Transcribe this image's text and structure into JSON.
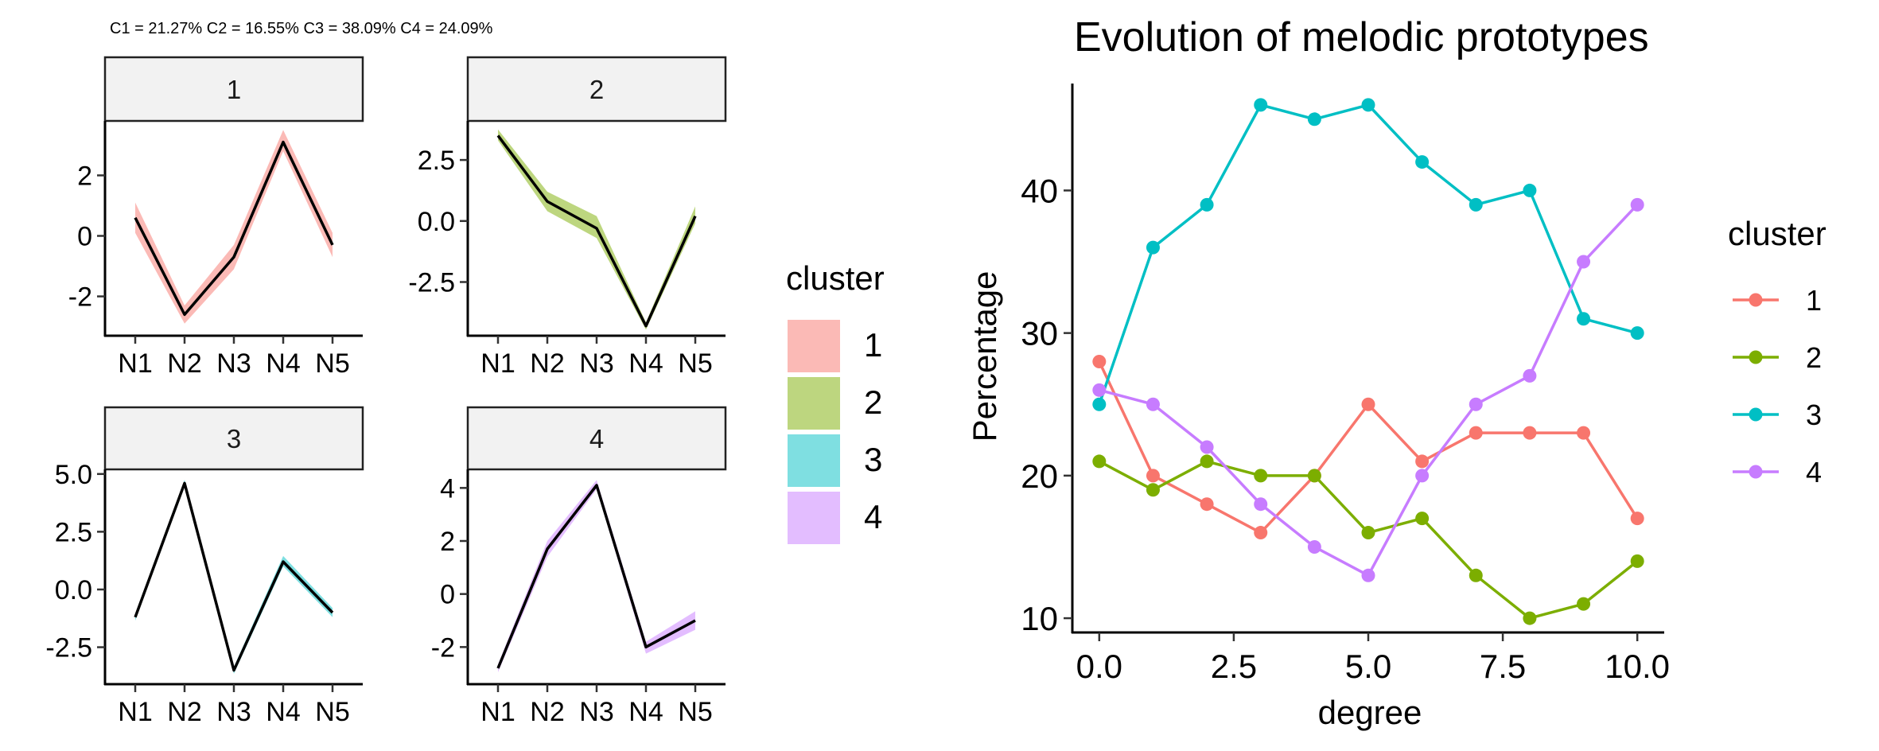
{
  "subtitle": "C1 = 21.27% C2 = 16.55% C3 = 38.09% C4 = 24.09%",
  "chart_data": [
    {
      "type": "line",
      "panels": [
        {
          "label": "1",
          "color": "#F8766D",
          "categories": [
            "N1",
            "N2",
            "N3",
            "N4",
            "N5"
          ],
          "values": [
            0.6,
            -2.6,
            -0.7,
            3.1,
            -0.3
          ],
          "band_lower": [
            0.1,
            -2.9,
            -1.1,
            2.8,
            -0.7
          ],
          "band_upper": [
            1.1,
            -2.3,
            -0.3,
            3.5,
            0.1
          ],
          "yticks": [
            -2,
            0,
            2
          ],
          "ylim": [
            -3.3,
            3.8
          ]
        },
        {
          "label": "2",
          "color": "#7CAE00",
          "categories": [
            "N1",
            "N2",
            "N3",
            "N4",
            "N5"
          ],
          "values": [
            3.5,
            0.8,
            -0.3,
            -4.3,
            0.2
          ],
          "band_lower": [
            3.3,
            0.4,
            -0.7,
            -4.45,
            -0.1
          ],
          "band_upper": [
            3.75,
            1.2,
            0.2,
            -4.15,
            0.6
          ],
          "yticks": [
            -2.5,
            0.0,
            2.5
          ],
          "yticklabels": [
            "-2.5",
            "0.0",
            "2.5"
          ],
          "ylim": [
            -4.7,
            4.1
          ]
        },
        {
          "label": "3",
          "color": "#00BFC4",
          "categories": [
            "N1",
            "N2",
            "N3",
            "N4",
            "N5"
          ],
          "values": [
            -1.2,
            4.6,
            -3.5,
            1.2,
            -1.0
          ],
          "band_lower": [
            -1.35,
            4.45,
            -3.65,
            1.0,
            -1.2
          ],
          "band_upper": [
            -1.05,
            4.75,
            -3.35,
            1.45,
            -0.8
          ],
          "yticks": [
            -2.5,
            0.0,
            2.5,
            5.0
          ],
          "yticklabels": [
            "-2.5",
            "0.0",
            "2.5",
            "5.0"
          ],
          "ylim": [
            -4.1,
            5.2
          ]
        },
        {
          "label": "4",
          "color": "#C77CFF",
          "categories": [
            "N1",
            "N2",
            "N3",
            "N4",
            "N5"
          ],
          "values": [
            -2.8,
            1.7,
            4.1,
            -2.0,
            -1.0
          ],
          "band_lower": [
            -2.95,
            1.4,
            3.95,
            -2.25,
            -1.35
          ],
          "band_upper": [
            -2.65,
            2.0,
            4.3,
            -1.8,
            -0.65
          ],
          "yticks": [
            -2,
            0,
            2,
            4
          ],
          "ylim": [
            -3.4,
            4.7
          ]
        }
      ],
      "legend": {
        "title": "cluster",
        "entries": [
          "1",
          "2",
          "3",
          "4"
        ],
        "colors": [
          "#F8766D",
          "#7CAE00",
          "#00BFC4",
          "#C77CFF"
        ],
        "placement": "right"
      }
    },
    {
      "type": "line",
      "title": "Evolution of melodic prototypes",
      "xlabel": "degree",
      "ylabel": "Percentage",
      "xlim": [
        -0.5,
        10.5
      ],
      "ylim": [
        9,
        47.5
      ],
      "xticks": [
        0,
        2.5,
        5,
        7.5,
        10
      ],
      "xticklabels": [
        "0.0",
        "2.5",
        "5.0",
        "7.5",
        "10.0"
      ],
      "yticks": [
        10,
        20,
        30,
        40
      ],
      "yticklabels": [
        "10",
        "20",
        "30",
        "40"
      ],
      "x": [
        0,
        1,
        2,
        3,
        4,
        5,
        6,
        7,
        8,
        9,
        10
      ],
      "series": [
        {
          "name": "1",
          "color": "#F8766D",
          "values": [
            28,
            20,
            18,
            16,
            20,
            25,
            21,
            23,
            23,
            23,
            17
          ]
        },
        {
          "name": "2",
          "color": "#7CAE00",
          "values": [
            21,
            19,
            21,
            20,
            20,
            16,
            17,
            13,
            10,
            11,
            14
          ]
        },
        {
          "name": "3",
          "color": "#00BFC4",
          "values": [
            25,
            36,
            39,
            46,
            45,
            46,
            42,
            39,
            40,
            31,
            30
          ]
        },
        {
          "name": "4",
          "color": "#C77CFF",
          "values": [
            26,
            25,
            22,
            18,
            15,
            13,
            20,
            25,
            27,
            35,
            39
          ]
        }
      ],
      "legend": {
        "title": "cluster",
        "placement": "right"
      },
      "grid": false
    }
  ]
}
